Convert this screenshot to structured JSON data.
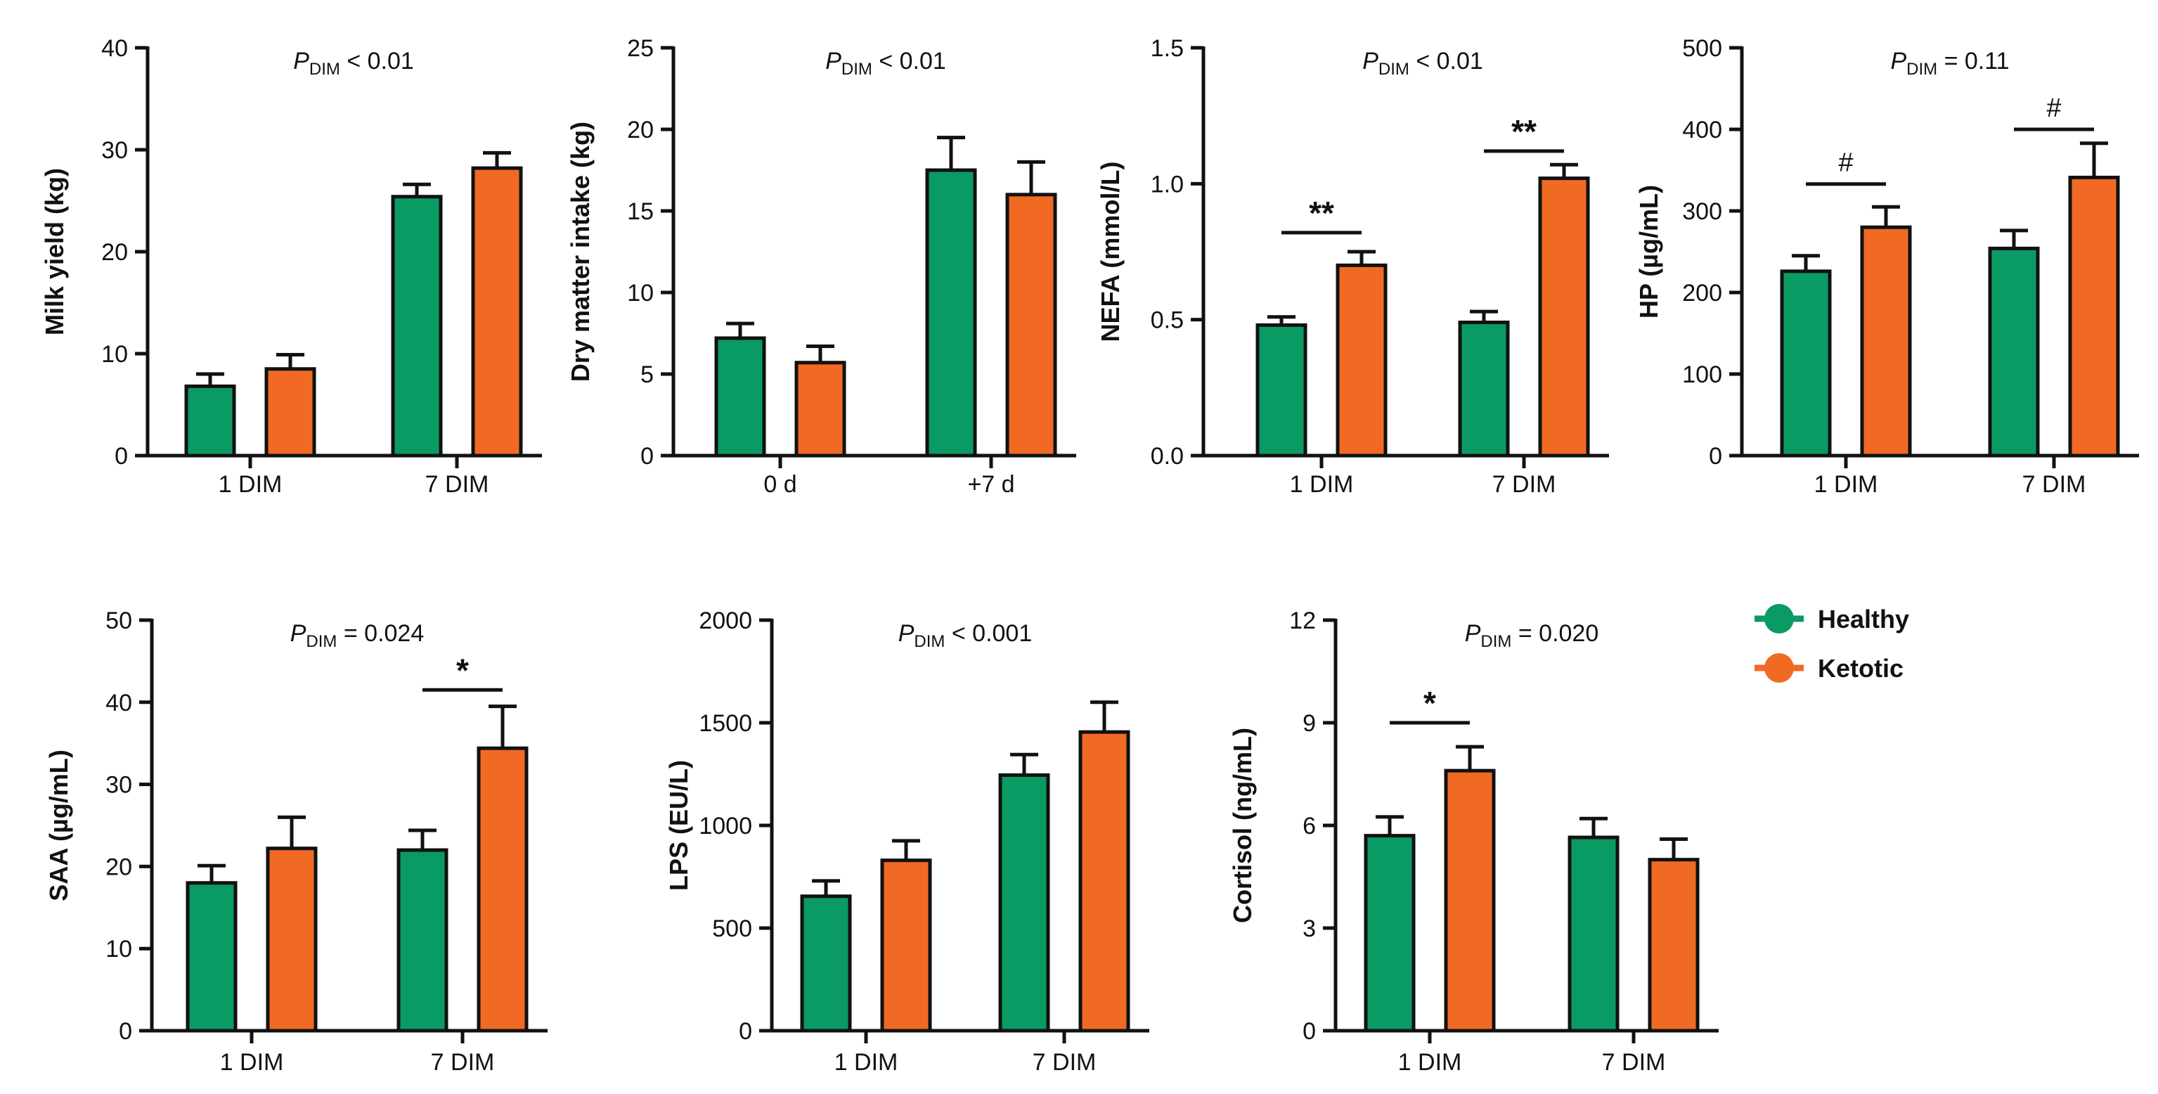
{
  "colors": {
    "healthy": "#0a9a63",
    "ketotic": "#f06a24",
    "axis": "#111111"
  },
  "legend": {
    "healthy": "Healthy",
    "ketotic": "Ketotic"
  },
  "chart_data": [
    {
      "id": "milk",
      "type": "bar",
      "ylabel": "Milk yield (kg)",
      "p_main": "P",
      "p_sub": "DIM",
      "p_rest": " < 0.01",
      "ylim": [
        0,
        40
      ],
      "yticks": [
        0,
        10,
        20,
        30,
        40
      ],
      "ytick_labels": [
        "0",
        "10",
        "20",
        "30",
        "40"
      ],
      "categories": [
        "1 DIM",
        "7 DIM"
      ],
      "series": [
        {
          "name": "Healthy",
          "values": [
            6.8,
            25.4
          ],
          "errors": [
            1.2,
            1.2
          ]
        },
        {
          "name": "Ketotic",
          "values": [
            8.5,
            28.2
          ],
          "errors": [
            1.4,
            1.5
          ]
        }
      ],
      "significance": []
    },
    {
      "id": "dmi",
      "type": "bar",
      "ylabel": "Dry matter intake (kg)",
      "p_main": "P",
      "p_sub": "DIM",
      "p_rest": " < 0.01",
      "ylim": [
        0,
        25
      ],
      "yticks": [
        0,
        5,
        10,
        15,
        20,
        25
      ],
      "ytick_labels": [
        "0",
        "5",
        "10",
        "15",
        "20",
        "25"
      ],
      "categories": [
        "0 d",
        "+7 d"
      ],
      "series": [
        {
          "name": "Healthy",
          "values": [
            7.2,
            17.5
          ],
          "errors": [
            0.9,
            2.0
          ]
        },
        {
          "name": "Ketotic",
          "values": [
            5.7,
            16.0
          ],
          "errors": [
            1.0,
            2.0
          ]
        }
      ],
      "significance": []
    },
    {
      "id": "nefa",
      "type": "bar",
      "ylabel": "NEFA (mmol/L)",
      "p_main": "P",
      "p_sub": "DIM",
      "p_rest": " < 0.01",
      "ylim": [
        0,
        1.5
      ],
      "yticks": [
        0,
        0.5,
        1.0,
        1.5
      ],
      "ytick_labels": [
        "0.0",
        "0.5",
        "1.0",
        "1.5"
      ],
      "categories": [
        "1 DIM",
        "7 DIM"
      ],
      "series": [
        {
          "name": "Healthy",
          "values": [
            0.48,
            0.49
          ],
          "errors": [
            0.03,
            0.04
          ]
        },
        {
          "name": "Ketotic",
          "values": [
            0.7,
            1.02
          ],
          "errors": [
            0.05,
            0.05
          ]
        }
      ],
      "significance": [
        {
          "category": 0,
          "symbol": "**",
          "value": 0.82
        },
        {
          "category": 1,
          "symbol": "**",
          "value": 1.12
        }
      ]
    },
    {
      "id": "hp",
      "type": "bar",
      "ylabel": "HP (µg/mL)",
      "p_main": "P",
      "p_sub": "DIM",
      "p_rest": " = 0.11",
      "ylim": [
        0,
        500
      ],
      "yticks": [
        0,
        100,
        200,
        300,
        400,
        500
      ],
      "ytick_labels": [
        "0",
        "100",
        "200",
        "300",
        "400",
        "500"
      ],
      "categories": [
        "1 DIM",
        "7 DIM"
      ],
      "series": [
        {
          "name": "Healthy",
          "values": [
            226,
            254
          ],
          "errors": [
            19,
            22
          ]
        },
        {
          "name": "Ketotic",
          "values": [
            280,
            341
          ],
          "errors": [
            25,
            42
          ]
        }
      ],
      "significance": [
        {
          "category": 0,
          "symbol": "#",
          "value": 333
        },
        {
          "category": 1,
          "symbol": "#",
          "value": 400
        }
      ]
    },
    {
      "id": "saa",
      "type": "bar",
      "ylabel": "SAA (µg/mL)",
      "p_main": "P",
      "p_sub": "DIM",
      "p_rest": " = 0.024",
      "ylim": [
        0,
        50
      ],
      "yticks": [
        0,
        10,
        20,
        30,
        40,
        50
      ],
      "ytick_labels": [
        "0",
        "10",
        "20",
        "30",
        "40",
        "50"
      ],
      "categories": [
        "1 DIM",
        "7 DIM"
      ],
      "series": [
        {
          "name": "Healthy",
          "values": [
            18.0,
            22.0
          ],
          "errors": [
            2.1,
            2.4
          ]
        },
        {
          "name": "Ketotic",
          "values": [
            22.2,
            34.4
          ],
          "errors": [
            3.8,
            5.1
          ]
        }
      ],
      "significance": [
        {
          "category": 1,
          "symbol": "*",
          "value": 41.5
        }
      ]
    },
    {
      "id": "lps",
      "type": "bar",
      "ylabel": "LPS (EU/L)",
      "p_main": "P",
      "p_sub": "DIM",
      "p_rest": " < 0.001",
      "ylim": [
        0,
        2000
      ],
      "yticks": [
        0,
        500,
        1000,
        1500,
        2000
      ],
      "ytick_labels": [
        "0",
        "500",
        "1000",
        "1500",
        "2000"
      ],
      "categories": [
        "1 DIM",
        "7 DIM"
      ],
      "series": [
        {
          "name": "Healthy",
          "values": [
            655,
            1245
          ],
          "errors": [
            75,
            100
          ]
        },
        {
          "name": "Ketotic",
          "values": [
            830,
            1455
          ],
          "errors": [
            95,
            145
          ]
        }
      ],
      "significance": []
    },
    {
      "id": "cortisol",
      "type": "bar",
      "ylabel": "Cortisol (ng/mL)",
      "p_main": "P",
      "p_sub": "DIM",
      "p_rest": " = 0.020",
      "ylim": [
        0,
        12
      ],
      "yticks": [
        0,
        3,
        6,
        9,
        12
      ],
      "ytick_labels": [
        "0",
        "3",
        "6",
        "9",
        "12"
      ],
      "categories": [
        "1 DIM",
        "7 DIM"
      ],
      "series": [
        {
          "name": "Healthy",
          "values": [
            5.7,
            5.65
          ],
          "errors": [
            0.55,
            0.55
          ]
        },
        {
          "name": "Ketotic",
          "values": [
            7.6,
            5.0
          ],
          "errors": [
            0.7,
            0.6
          ]
        }
      ],
      "significance": [
        {
          "category": 0,
          "symbol": "*",
          "value": 9.0
        }
      ]
    }
  ]
}
